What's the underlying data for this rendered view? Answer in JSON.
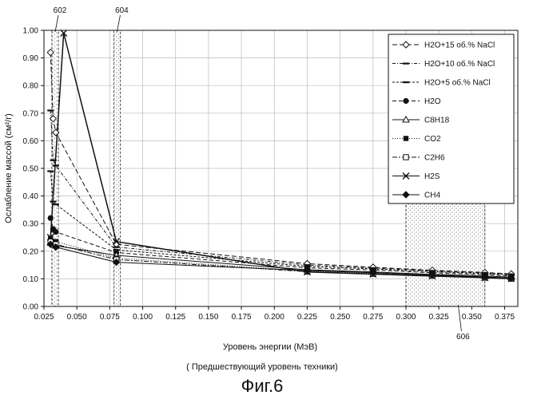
{
  "chart_data": {
    "type": "line",
    "xlabel": "Уровень энергии  (МэВ)",
    "ylabel": "Ослабление массой  (см²/г)",
    "caption": "( Предшествующий уровень техники)",
    "figure_label": "Фиг.6",
    "xlim": [
      0.025,
      0.385
    ],
    "ylim": [
      0.0,
      1.0
    ],
    "x_ticks": [
      "0.025",
      "0.050",
      "0.075",
      "0.100",
      "0.125",
      "0.150",
      "0.175",
      "0.200",
      "0.225",
      "0.250",
      "0.275",
      "0.300",
      "0.325",
      "0.350",
      "0.375"
    ],
    "y_ticks": [
      "0.00",
      "0.10",
      "0.20",
      "0.30",
      "0.40",
      "0.50",
      "0.60",
      "0.70",
      "0.80",
      "0.90",
      "1.00"
    ],
    "grid": true,
    "legend_position": "top-right",
    "bands": [
      {
        "label": "602",
        "x_from": 0.031,
        "x_to": 0.036
      },
      {
        "label": "604",
        "x_from": 0.078,
        "x_to": 0.083
      },
      {
        "label": "606",
        "x_from": 0.3,
        "x_to": 0.36
      }
    ],
    "series": [
      {
        "name": "H2O+15 об.% NaCl",
        "marker": "diamond-open",
        "dash": "6,3",
        "x": [
          0.03,
          0.032,
          0.034,
          0.08,
          0.225,
          0.275,
          0.32,
          0.36,
          0.38
        ],
        "y": [
          0.92,
          0.68,
          0.63,
          0.225,
          0.155,
          0.142,
          0.131,
          0.123,
          0.118
        ]
      },
      {
        "name": "H2O+10 об.% NaCl",
        "marker": "dash",
        "dash": "4,2,1,2",
        "x": [
          0.03,
          0.032,
          0.034,
          0.08,
          0.225,
          0.275,
          0.32,
          0.36,
          0.38
        ],
        "y": [
          0.71,
          0.53,
          0.51,
          0.215,
          0.15,
          0.139,
          0.129,
          0.121,
          0.116
        ]
      },
      {
        "name": "H2O+5 об.% NaCl",
        "marker": "dash",
        "dash": "3,2",
        "x": [
          0.03,
          0.032,
          0.034,
          0.08,
          0.225,
          0.275,
          0.32,
          0.36,
          0.38
        ],
        "y": [
          0.49,
          0.38,
          0.37,
          0.205,
          0.145,
          0.136,
          0.126,
          0.119,
          0.114
        ]
      },
      {
        "name": "H2O",
        "marker": "circle",
        "dash": "5,3",
        "x": [
          0.03,
          0.032,
          0.034,
          0.08,
          0.225,
          0.275,
          0.32,
          0.36,
          0.38
        ],
        "y": [
          0.32,
          0.28,
          0.27,
          0.195,
          0.14,
          0.132,
          0.122,
          0.115,
          0.11
        ]
      },
      {
        "name": "C8H18",
        "marker": "triangle-open",
        "dash": "",
        "x": [
          0.03,
          0.034,
          0.08,
          0.225,
          0.275,
          0.32,
          0.36,
          0.38
        ],
        "y": [
          0.23,
          0.22,
          0.185,
          0.133,
          0.125,
          0.116,
          0.11,
          0.106
        ]
      },
      {
        "name": "CO2",
        "marker": "square",
        "dash": "1,2",
        "x": [
          0.03,
          0.034,
          0.08,
          0.225,
          0.275,
          0.32,
          0.36,
          0.38
        ],
        "y": [
          0.245,
          0.235,
          0.175,
          0.128,
          0.12,
          0.112,
          0.106,
          0.102
        ]
      },
      {
        "name": "C2H6",
        "marker": "square-open",
        "dash": "6,2,2,2",
        "x": [
          0.03,
          0.034,
          0.08,
          0.225,
          0.275,
          0.32,
          0.36,
          0.38
        ],
        "y": [
          0.235,
          0.225,
          0.17,
          0.126,
          0.118,
          0.111,
          0.104,
          0.1
        ]
      },
      {
        "name": "H2S",
        "marker": "x",
        "dash": "",
        "x": [
          0.03,
          0.04,
          0.08,
          0.225,
          0.275,
          0.32,
          0.36,
          0.38
        ],
        "y": [
          0.25,
          0.99,
          0.235,
          0.125,
          0.117,
          0.11,
          0.104,
          0.101
        ]
      },
      {
        "name": "CH4",
        "marker": "diamond",
        "dash": "",
        "x": [
          0.03,
          0.034,
          0.08,
          0.225,
          0.275,
          0.32,
          0.36,
          0.38
        ],
        "y": [
          0.225,
          0.215,
          0.16,
          0.13,
          0.122,
          0.114,
          0.107,
          0.103
        ]
      }
    ]
  }
}
